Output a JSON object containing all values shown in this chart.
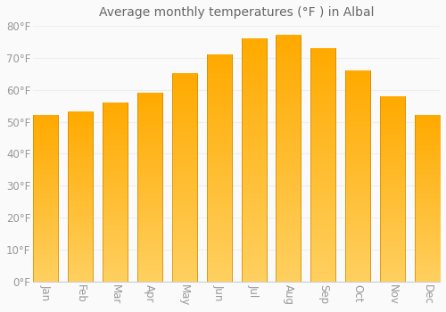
{
  "title": "Average monthly temperatures (°F ) in Albal",
  "months": [
    "Jan",
    "Feb",
    "Mar",
    "Apr",
    "May",
    "Jun",
    "Jul",
    "Aug",
    "Sep",
    "Oct",
    "Nov",
    "Dec"
  ],
  "values": [
    52,
    53,
    56,
    59,
    65,
    71,
    76,
    77,
    73,
    66,
    58,
    52
  ],
  "bar_color_main": "#FFAA00",
  "bar_color_light": "#FFD860",
  "bar_color_dark": "#E88000",
  "background_color": "#FAFAFA",
  "grid_color": "#EEEEEE",
  "text_color": "#999999",
  "ylim": [
    0,
    80
  ],
  "yticks": [
    0,
    10,
    20,
    30,
    40,
    50,
    60,
    70,
    80
  ],
  "ytick_labels": [
    "0°F",
    "10°F",
    "20°F",
    "30°F",
    "40°F",
    "50°F",
    "60°F",
    "70°F",
    "80°F"
  ],
  "title_fontsize": 10,
  "tick_fontsize": 8.5
}
